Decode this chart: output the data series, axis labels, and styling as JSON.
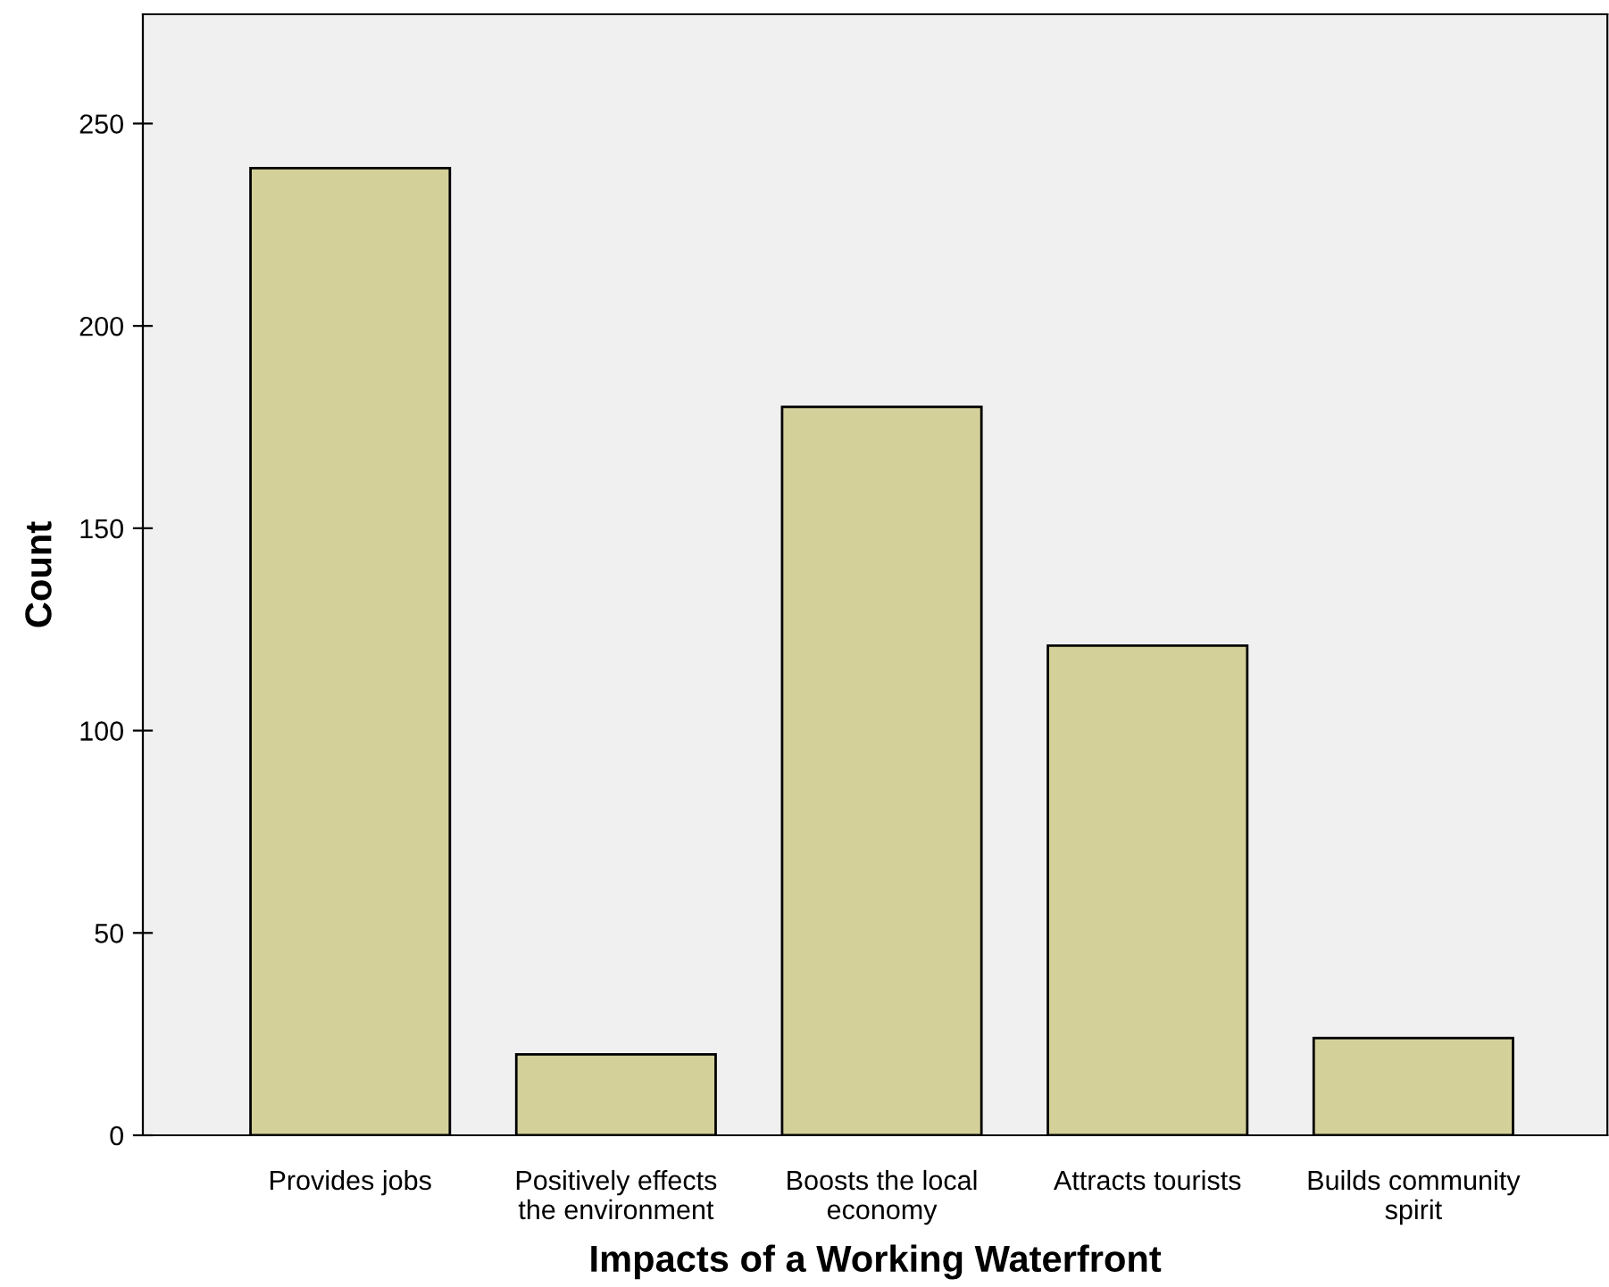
{
  "chart_data": {
    "type": "bar",
    "xlabel": "Impacts of a Working Waterfront",
    "ylabel": "Count",
    "categories": [
      "Provides jobs",
      "Positively effects\nthe environment",
      "Boosts the local\neconomy",
      "Attracts tourists",
      "Builds community\nspirit"
    ],
    "values": [
      239,
      20,
      180,
      121,
      24
    ],
    "color": "#d4d09a",
    "ylim": [
      0,
      277
    ],
    "yticks": [
      0,
      50,
      100,
      150,
      200,
      250
    ],
    "grid": false,
    "legend": false
  }
}
